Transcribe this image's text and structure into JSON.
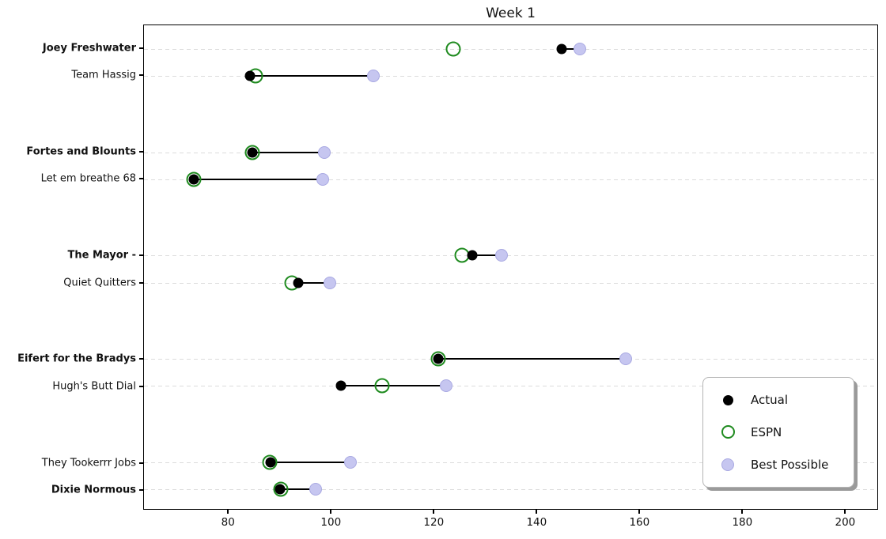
{
  "chart_data": {
    "type": "scatter",
    "subtype": "dumbbell-dot-plot",
    "title": "Week 1",
    "xlabel": "",
    "ylabel": "",
    "xlim": [
      63.5,
      206.4
    ],
    "xticks": [
      80,
      100,
      120,
      140,
      160,
      180,
      200
    ],
    "grid": "horizontal-dashed",
    "legend": {
      "position": "lower right"
    },
    "series": [
      {
        "name": "Actual",
        "field": "actual",
        "marker": "filled-circle",
        "color": "#000000"
      },
      {
        "name": "ESPN",
        "field": "espn",
        "marker": "open-circle",
        "color": "#1f8b1f"
      },
      {
        "name": "Best Possible",
        "field": "best_possible",
        "marker": "filled-circle",
        "color": "#c6c6f0"
      }
    ],
    "connector": {
      "from": "actual",
      "to": "best_possible",
      "color": "#000000"
    },
    "rows": [
      {
        "team": "Joey Freshwater",
        "bold": true,
        "actual": 144.9,
        "espn": 123.7,
        "best_possible": 148.4
      },
      {
        "team": "Team Hassig",
        "bold": false,
        "actual": 84.2,
        "espn": 85.3,
        "best_possible": 108.2
      },
      {
        "team": "Fortes and Blounts",
        "bold": true,
        "actual": 84.6,
        "espn": 84.6,
        "best_possible": 98.6
      },
      {
        "team": "Let em breathe 68",
        "bold": false,
        "actual": 73.2,
        "espn": 73.2,
        "best_possible": 98.3
      },
      {
        "team": "The Mayor -",
        "bold": true,
        "actual": 127.4,
        "espn": 125.5,
        "best_possible": 133.2
      },
      {
        "team": "Quiet Quitters",
        "bold": false,
        "actual": 93.5,
        "espn": 92.3,
        "best_possible": 99.8
      },
      {
        "team": "Eifert for the Bradys",
        "bold": true,
        "actual": 120.9,
        "espn": 120.9,
        "best_possible": 157.4
      },
      {
        "team": "Hugh's Butt Dial",
        "bold": false,
        "actual": 101.9,
        "espn": 109.9,
        "best_possible": 122.4
      },
      {
        "team": "They Tookerrr Jobs",
        "bold": false,
        "actual": 88.1,
        "espn": 88.0,
        "best_possible": 103.7
      },
      {
        "team": "Dixie Normous",
        "bold": true,
        "actual": 90.0,
        "espn": 90.2,
        "best_possible": 96.9
      }
    ],
    "row_layout": {
      "positions": [
        0,
        1,
        3.82,
        4.82,
        7.64,
        8.64,
        11.46,
        12.46,
        15.28,
        16.28
      ],
      "pad_top": 0.87,
      "pad_bottom": 0.73
    }
  },
  "colors": {
    "actual": "#000000",
    "espn_edge": "#1f8b1f",
    "best_fill": "#c6c6f0",
    "best_edge": "#a9a9e2",
    "grid": "#dcdcdc",
    "connector": "#000000"
  }
}
